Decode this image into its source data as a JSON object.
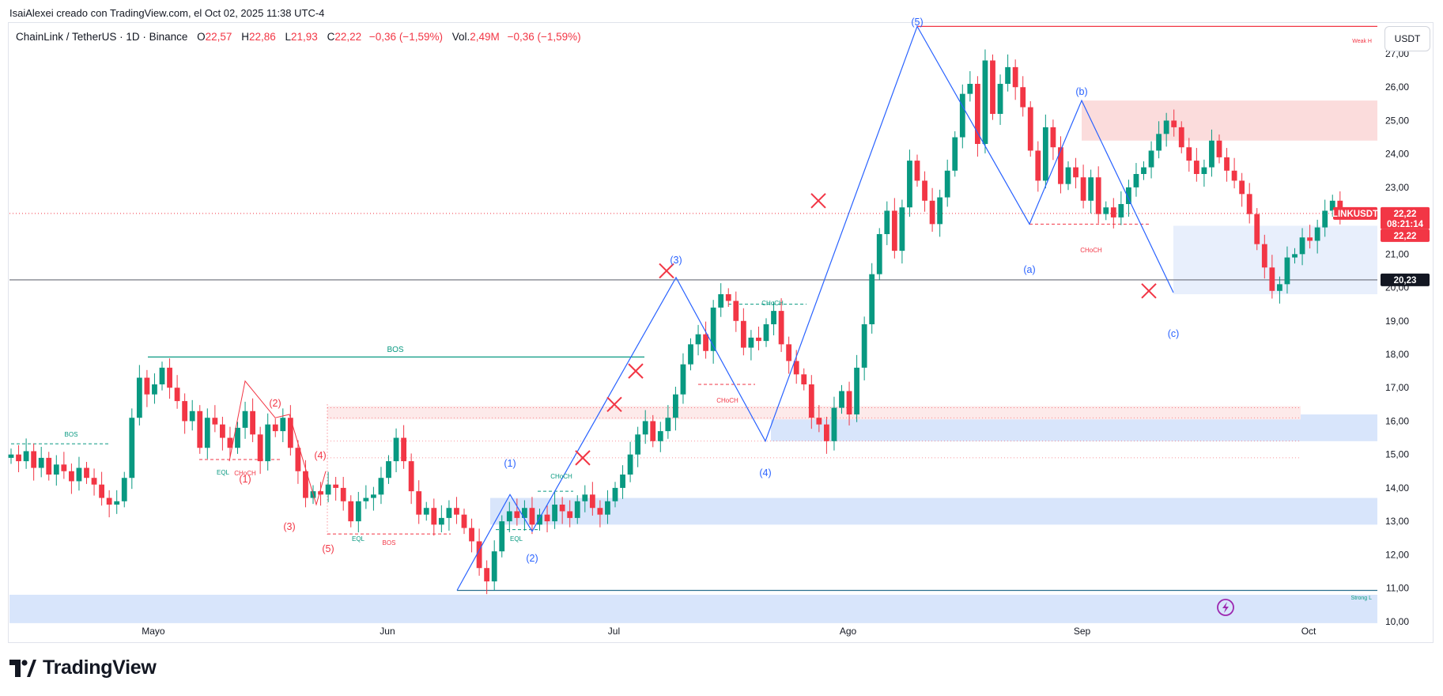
{
  "header": {
    "caption": "IsaiAlexei creado con TradingView.com, el Oct 02, 2025 11:38 UTC-4"
  },
  "legend": {
    "symbol": "ChainLink / TetherUS · 1D · Binance",
    "open_label": "O",
    "open": "22,57",
    "high_label": "H",
    "high": "22,86",
    "low_label": "L",
    "low": "21,93",
    "close_label": "C",
    "close": "22,22",
    "change": "−0,36 (−1,59%)",
    "vol_label": "Vol.",
    "vol": "2,49M",
    "vol_change": "−0,36 (−1,59%)"
  },
  "currency_button": "USDT",
  "brand": {
    "name": "TradingView"
  },
  "colors": {
    "up": "#089981",
    "down": "#f23645",
    "wave": "#2962ff",
    "zone_blue": "#d6e4fb",
    "zone_red": "#fbdada"
  },
  "chart_data": {
    "type": "candlestick",
    "title": "ChainLink / TetherUS · 1D · Binance",
    "ylim": [
      9.9,
      27.9
    ],
    "y_ticks": [
      {
        "v": 10,
        "label": "10,00"
      },
      {
        "v": 11,
        "label": "11,00"
      },
      {
        "v": 12,
        "label": "12,00"
      },
      {
        "v": 13,
        "label": "13,00"
      },
      {
        "v": 14,
        "label": "14,00"
      },
      {
        "v": 15,
        "label": "15,00"
      },
      {
        "v": 16,
        "label": "16,00"
      },
      {
        "v": 17,
        "label": "17,00"
      },
      {
        "v": 18,
        "label": "18,00"
      },
      {
        "v": 19,
        "label": "19,00"
      },
      {
        "v": 20,
        "label": "20,00"
      },
      {
        "v": 21,
        "label": "21,00"
      },
      {
        "v": 22,
        "label": "22,00"
      },
      {
        "v": 23,
        "label": "23,00"
      },
      {
        "v": 24,
        "label": "24,00"
      },
      {
        "v": 25,
        "label": "25,00"
      },
      {
        "v": 26,
        "label": "26,00"
      },
      {
        "v": 27,
        "label": "27,00"
      }
    ],
    "x_ticks": [
      {
        "i": 18,
        "label": "Mayo"
      },
      {
        "i": 49,
        "label": "Jun"
      },
      {
        "i": 79,
        "label": "Jul"
      },
      {
        "i": 110,
        "label": "Ago"
      },
      {
        "i": 141,
        "label": "Sep"
      },
      {
        "i": 171,
        "label": "Oct"
      }
    ],
    "price_tags": [
      {
        "y": 22.22,
        "label": "LINKUSDT",
        "color": "#f23645",
        "side": "left"
      },
      {
        "y": 22.22,
        "label": "22,22",
        "sub": "08:21:14",
        "color": "#f23645"
      },
      {
        "y": 22.22,
        "label": "22,22",
        "color": "#f23645",
        "offset": 1
      },
      {
        "y": 20.23,
        "label": "20,23",
        "color": "#131722"
      }
    ],
    "closes": [
      15.0,
      14.8,
      15.1,
      14.6,
      14.9,
      14.4,
      14.7,
      14.5,
      14.2,
      14.6,
      14.3,
      14.1,
      13.7,
      13.5,
      13.6,
      14.3,
      16.1,
      17.3,
      16.8,
      17.1,
      17.6,
      17.0,
      16.6,
      16.0,
      16.3,
      15.2,
      16.1,
      15.9,
      15.5,
      15.2,
      15.8,
      16.3,
      15.6,
      14.8,
      15.9,
      15.7,
      16.1,
      15.2,
      14.5,
      13.7,
      13.9,
      13.8,
      14.1,
      14.0,
      13.6,
      13.0,
      13.6,
      13.7,
      13.8,
      14.3,
      14.8,
      15.5,
      14.8,
      13.9,
      13.2,
      13.4,
      12.9,
      13.1,
      13.4,
      13.2,
      12.8,
      12.4,
      11.6,
      11.2,
      12.1,
      13.0,
      13.3,
      13.1,
      13.4,
      12.9,
      13.2,
      13.0,
      13.5,
      13.3,
      13.1,
      13.6,
      13.8,
      13.4,
      13.2,
      13.6,
      14.0,
      14.4,
      15.0,
      15.6,
      16.0,
      15.4,
      15.7,
      16.1,
      16.8,
      17.7,
      18.3,
      18.6,
      18.1,
      19.4,
      19.8,
      19.6,
      19.0,
      18.2,
      18.5,
      18.4,
      18.9,
      19.3,
      18.3,
      17.8,
      17.4,
      17.1,
      16.1,
      15.9,
      15.4,
      16.4,
      16.9,
      16.2,
      17.6,
      18.9,
      20.4,
      21.6,
      22.3,
      21.1,
      22.4,
      23.8,
      23.2,
      22.6,
      21.9,
      22.7,
      23.5,
      24.5,
      25.8,
      26.1,
      24.3,
      26.8,
      25.2,
      26.1,
      26.6,
      26.0,
      25.4,
      24.1,
      23.2,
      24.8,
      24.2,
      23.1,
      23.6,
      23.3,
      22.6,
      23.3,
      22.2,
      22.4,
      22.1,
      22.5,
      23.0,
      23.4,
      23.6,
      24.1,
      24.6,
      25.0,
      24.8,
      24.2,
      23.8,
      23.4,
      23.6,
      24.4,
      23.9,
      23.5,
      23.2,
      22.8,
      22.2,
      21.3,
      20.6,
      19.9,
      20.1,
      20.9,
      21.0,
      21.5,
      21.4,
      21.8,
      22.3,
      22.6,
      22.22
    ]
  },
  "annotations": {
    "wave_labels": [
      {
        "text": "(1)",
        "color": "#f23645"
      },
      {
        "text": "(2)",
        "color": "#f23645"
      },
      {
        "text": "(3)",
        "color": "#f23645"
      },
      {
        "text": "(4)",
        "color": "#f23645"
      },
      {
        "text": "(5)",
        "color": "#f23645"
      },
      {
        "text": "(1)",
        "color": "#2962ff"
      },
      {
        "text": "(2)",
        "color": "#2962ff"
      },
      {
        "text": "(3)",
        "color": "#2962ff"
      },
      {
        "text": "(4)",
        "color": "#2962ff"
      },
      {
        "text": "(5)",
        "color": "#2962ff"
      },
      {
        "text": "(a)",
        "color": "#2962ff"
      },
      {
        "text": "(b)",
        "color": "#2962ff"
      },
      {
        "text": "(c)",
        "color": "#2962ff"
      }
    ],
    "structure_labels": [
      {
        "text": "BOS",
        "color": "#089981"
      },
      {
        "text": "BOS",
        "color": "#089981"
      },
      {
        "text": "EQL",
        "color": "#089981"
      },
      {
        "text": "CHoCH",
        "color": "#f23645"
      },
      {
        "text": "EQL",
        "color": "#089981"
      },
      {
        "text": "BOS",
        "color": "#f23645"
      },
      {
        "text": "EQL",
        "color": "#089981"
      },
      {
        "text": "CHoCH",
        "color": "#089981"
      },
      {
        "text": "CHoCH",
        "color": "#089981"
      },
      {
        "text": "CHoCH",
        "color": "#f23645"
      },
      {
        "text": "CHoCH",
        "color": "#f23645"
      },
      {
        "text": "Weak H",
        "color": "#f23645"
      },
      {
        "text": "Strong L",
        "color": "#089981"
      }
    ]
  }
}
